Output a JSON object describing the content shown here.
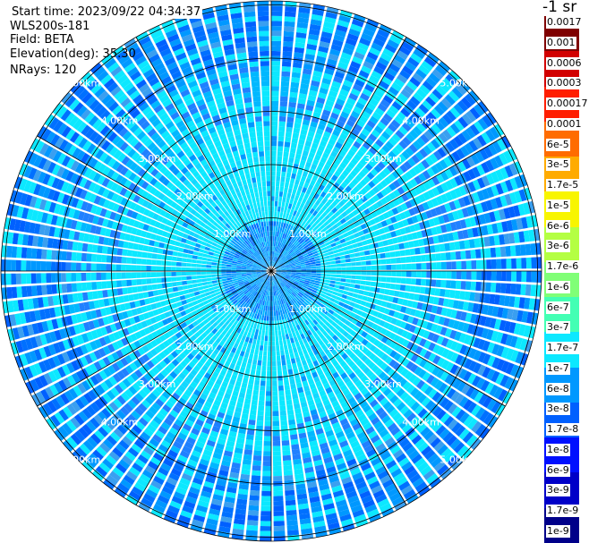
{
  "info": {
    "start_time": "Start time: 2023/09/22 04:34:37",
    "instrument": "WLS200s-181",
    "field": "Field: BETA",
    "elevation": "Elevation(deg): 35.30",
    "nrays": "NRays: 120"
  },
  "plot": {
    "rings_km": [
      1,
      2,
      3,
      4,
      5
    ],
    "ring_label_suffix": "km",
    "spoke_count": 12,
    "ray_count": 120,
    "gate_count": 54
  },
  "colorbar": {
    "title": "-1 sr",
    "colors": [
      "#7f0000",
      "#d20000",
      "#ff1e00",
      "#ff6c00",
      "#ffab00",
      "#f8f500",
      "#b4ff43",
      "#80ff77",
      "#43ffb4",
      "#0ce8ff",
      "#0098ff",
      "#0060ff",
      "#0010ff",
      "#0000c8",
      "#000089"
    ],
    "labels": [
      "0.0017",
      "0.001",
      "0.0006",
      "0.0003",
      "0.00017",
      "0.0001",
      "6e-5",
      "3e-5",
      "1.7e-5",
      "1e-5",
      "6e-6",
      "3e-6",
      "1.7e-6",
      "1e-6",
      "6e-7",
      "3e-7",
      "1.7e-7",
      "1e-7",
      "6e-8",
      "3e-8",
      "1.7e-8",
      "1e-8",
      "6e-9",
      "3e-9",
      "1.7e-9",
      "1e-9"
    ]
  }
}
